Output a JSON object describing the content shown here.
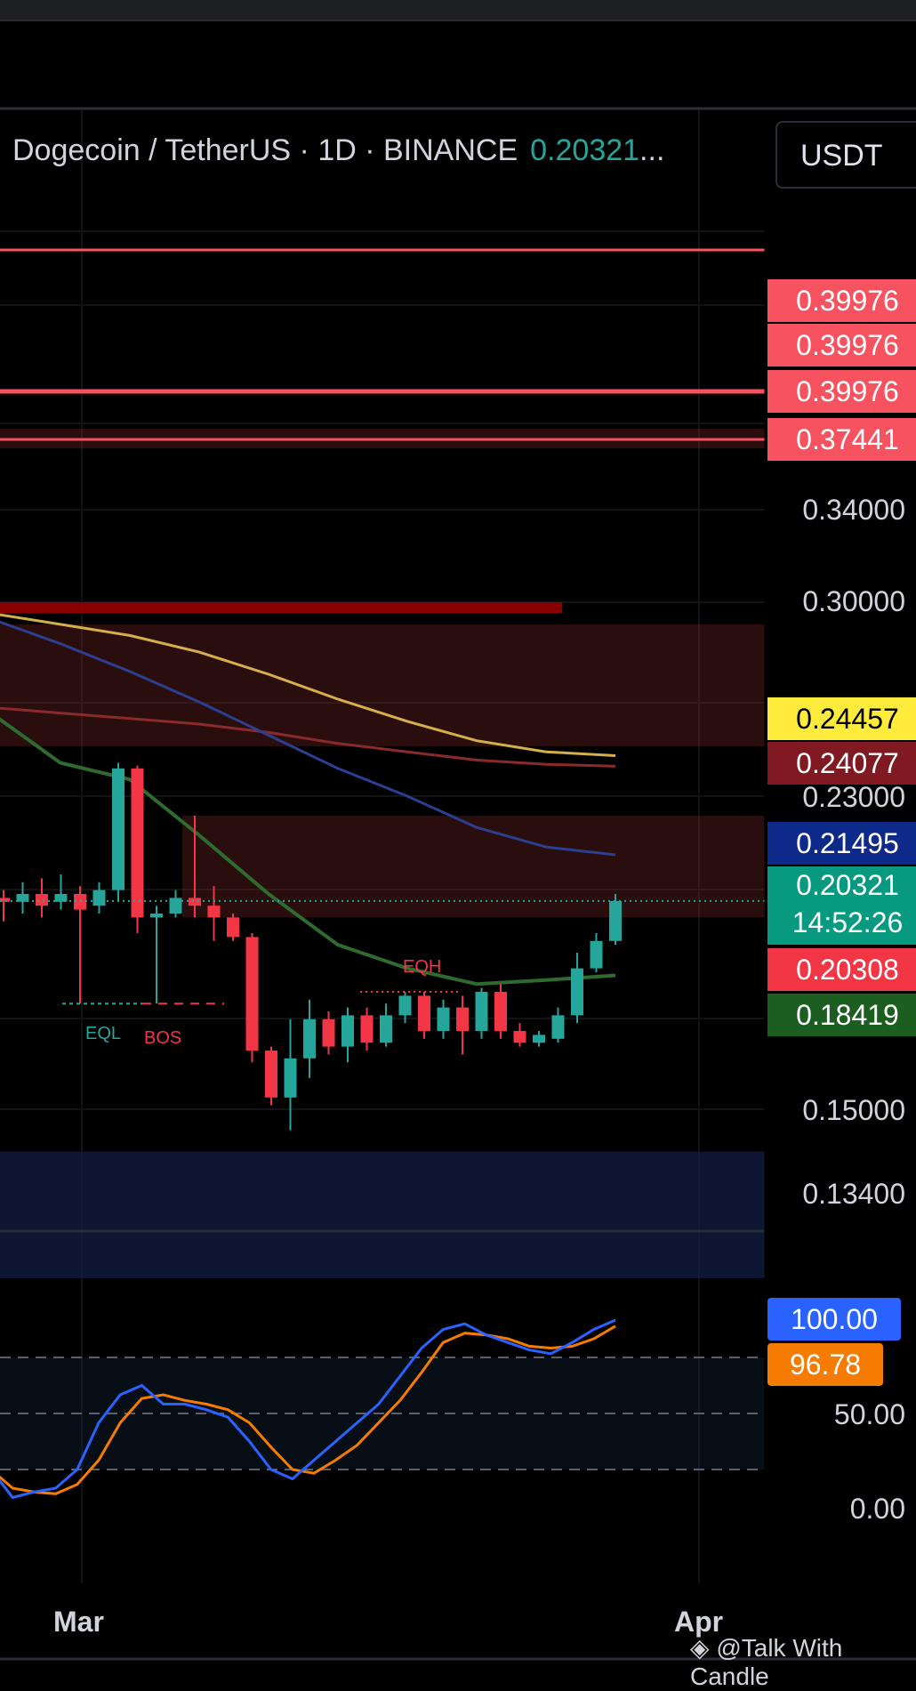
{
  "header": {
    "symbol": "Dogecoin / TetherUS · 1D · BINANCE",
    "last_price": "0.20321",
    "ellipsis": "...",
    "currency_button": "USDT"
  },
  "price_axis": {
    "ticks": [
      "0.34000",
      "0.30000",
      "0.23000",
      "0.15000",
      "0.13400"
    ],
    "badges": [
      {
        "label": "0.39976",
        "color": "#f7525f",
        "text_color": "#ffffff"
      },
      {
        "label": "0.39976",
        "color": "#f7525f",
        "text_color": "#ffffff"
      },
      {
        "label": "0.39976",
        "color": "#f7525f",
        "text_color": "#ffffff"
      },
      {
        "label": "0.37441",
        "color": "#f7525f",
        "text_color": "#ffffff"
      },
      {
        "label": "0.24457",
        "color": "#ffeb3b",
        "text_color": "#000000"
      },
      {
        "label": "0.24077",
        "color": "#801922",
        "text_color": "#ffffff"
      },
      {
        "label": "0.21495",
        "color": "#0d2a8a",
        "text_color": "#ffffff"
      },
      {
        "label": "0.20321",
        "color": "#089981",
        "text_color": "#ffffff"
      },
      {
        "label": "0.20308",
        "color": "#f23645",
        "text_color": "#ffffff"
      },
      {
        "label": "0.18419",
        "color": "#1b5e20",
        "text_color": "#ffffff"
      }
    ],
    "countdown": "14:52:26"
  },
  "oscillator_axis": {
    "ticks": [
      "50.00",
      "0.00"
    ],
    "badges": [
      {
        "label": "100.00",
        "color": "#2962ff",
        "text_color": "#ffffff"
      },
      {
        "label": "96.78",
        "color": "#f57c00",
        "text_color": "#ffffff"
      }
    ]
  },
  "time_axis": {
    "labels": [
      "Mar",
      "Apr"
    ]
  },
  "annotations": {
    "eql": "EQL",
    "bos": "BOS",
    "eqh": "EQH"
  },
  "watermark": "@Talk With Candle",
  "colors": {
    "up": "#26a69a",
    "down": "#f23645",
    "ma_yellow": "#d4b04a",
    "ma_red": "#8b2a2a",
    "ma_blue": "#2a3f8f",
    "ma_green": "#2e6b2e",
    "stoch_k": "#2962ff",
    "stoch_d": "#f57c00"
  },
  "chart_data": {
    "type": "candlestick",
    "title": "Dogecoin / TetherUS · 1D · BINANCE",
    "timeframe": "1D",
    "x_labels": [
      "Mar",
      "Apr"
    ],
    "candles": [
      {
        "o": 0.204,
        "h": 0.206,
        "l": 0.198,
        "c": 0.203
      },
      {
        "o": 0.203,
        "h": 0.208,
        "l": 0.2,
        "c": 0.205
      },
      {
        "o": 0.205,
        "h": 0.209,
        "l": 0.199,
        "c": 0.202
      },
      {
        "o": 0.203,
        "h": 0.21,
        "l": 0.201,
        "c": 0.205
      },
      {
        "o": 0.205,
        "h": 0.207,
        "l": 0.177,
        "c": 0.201
      },
      {
        "o": 0.202,
        "h": 0.208,
        "l": 0.2,
        "c": 0.206
      },
      {
        "o": 0.206,
        "h": 0.242,
        "l": 0.203,
        "c": 0.24
      },
      {
        "o": 0.24,
        "h": 0.241,
        "l": 0.195,
        "c": 0.199
      },
      {
        "o": 0.199,
        "h": 0.202,
        "l": 0.177,
        "c": 0.2
      },
      {
        "o": 0.2,
        "h": 0.206,
        "l": 0.199,
        "c": 0.204
      },
      {
        "o": 0.204,
        "h": 0.225,
        "l": 0.199,
        "c": 0.202
      },
      {
        "o": 0.202,
        "h": 0.207,
        "l": 0.193,
        "c": 0.199
      },
      {
        "o": 0.199,
        "h": 0.2,
        "l": 0.193,
        "c": 0.194
      },
      {
        "o": 0.194,
        "h": 0.195,
        "l": 0.162,
        "c": 0.165
      },
      {
        "o": 0.165,
        "h": 0.166,
        "l": 0.151,
        "c": 0.153
      },
      {
        "o": 0.153,
        "h": 0.173,
        "l": 0.146,
        "c": 0.163
      },
      {
        "o": 0.163,
        "h": 0.178,
        "l": 0.158,
        "c": 0.173
      },
      {
        "o": 0.173,
        "h": 0.175,
        "l": 0.164,
        "c": 0.166
      },
      {
        "o": 0.166,
        "h": 0.176,
        "l": 0.162,
        "c": 0.174
      },
      {
        "o": 0.174,
        "h": 0.176,
        "l": 0.165,
        "c": 0.167
      },
      {
        "o": 0.167,
        "h": 0.177,
        "l": 0.166,
        "c": 0.174
      },
      {
        "o": 0.174,
        "h": 0.18,
        "l": 0.172,
        "c": 0.179
      },
      {
        "o": 0.179,
        "h": 0.18,
        "l": 0.168,
        "c": 0.17
      },
      {
        "o": 0.17,
        "h": 0.178,
        "l": 0.168,
        "c": 0.176
      },
      {
        "o": 0.176,
        "h": 0.179,
        "l": 0.164,
        "c": 0.17
      },
      {
        "o": 0.17,
        "h": 0.181,
        "l": 0.168,
        "c": 0.18
      },
      {
        "o": 0.18,
        "h": 0.182,
        "l": 0.168,
        "c": 0.17
      },
      {
        "o": 0.17,
        "h": 0.172,
        "l": 0.166,
        "c": 0.167
      },
      {
        "o": 0.167,
        "h": 0.17,
        "l": 0.166,
        "c": 0.169
      },
      {
        "o": 0.168,
        "h": 0.176,
        "l": 0.167,
        "c": 0.174
      },
      {
        "o": 0.174,
        "h": 0.19,
        "l": 0.172,
        "c": 0.186
      },
      {
        "o": 0.186,
        "h": 0.195,
        "l": 0.185,
        "c": 0.193
      },
      {
        "o": 0.193,
        "h": 0.205,
        "l": 0.192,
        "c": 0.2032
      }
    ],
    "moving_averages": [
      {
        "color": "yellow",
        "last": 0.24457,
        "values": [
          0.296,
          0.292,
          0.288,
          0.282,
          0.274,
          0.265,
          0.257,
          0.25,
          0.246,
          0.2446
        ]
      },
      {
        "color": "red",
        "last": 0.24077,
        "values": [
          0.262,
          0.26,
          0.258,
          0.256,
          0.253,
          0.249,
          0.246,
          0.243,
          0.2415,
          0.2408
        ]
      },
      {
        "color": "blue",
        "last": 0.21495,
        "values": [
          0.294,
          0.285,
          0.275,
          0.264,
          0.252,
          0.24,
          0.23,
          0.222,
          0.217,
          0.215
        ]
      },
      {
        "color": "green",
        "last": 0.18419,
        "values": [
          0.26,
          0.242,
          0.236,
          0.22,
          0.205,
          0.192,
          0.186,
          0.182,
          0.183,
          0.1842
        ]
      }
    ],
    "horizontal_levels": [
      0.39976,
      0.37441,
      0.3
    ],
    "zones": [
      {
        "from": 0.37,
        "to": 0.38,
        "color": "maroon"
      },
      {
        "from": 0.296,
        "to": 0.3,
        "color": "red"
      },
      {
        "from": 0.248,
        "to": 0.292,
        "color": "maroon"
      },
      {
        "from": 0.199,
        "to": 0.225,
        "color": "maroon"
      },
      {
        "from": 0.118,
        "to": 0.142,
        "color": "navy"
      }
    ],
    "oscillator": {
      "type": "stochastic",
      "k_last": 100.0,
      "d_last": 96.78,
      "levels": [
        80,
        50,
        20
      ],
      "k": [
        20,
        5,
        8,
        10,
        20,
        45,
        60,
        65,
        55,
        55,
        52,
        48,
        35,
        20,
        15,
        25,
        35,
        45,
        55,
        70,
        85,
        95,
        98,
        92,
        88,
        84,
        82,
        88,
        95,
        100
      ],
      "d": [
        20,
        10,
        8,
        7,
        12,
        25,
        45,
        58,
        60,
        57,
        55,
        52,
        45,
        32,
        20,
        18,
        25,
        33,
        45,
        57,
        72,
        88,
        93,
        92,
        90,
        86,
        85,
        86,
        90,
        96.78
      ]
    }
  }
}
